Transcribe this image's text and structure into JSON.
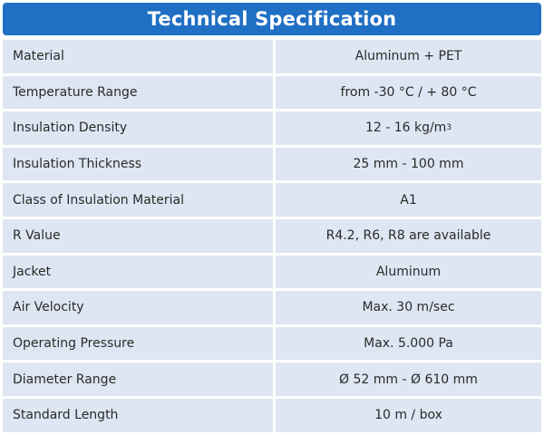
{
  "title": "Technical Specification",
  "rows": [
    {
      "label": "Material",
      "value": "Aluminum + PET"
    },
    {
      "label": "Temperature Range",
      "value": "from -30 °C / + 80 °C"
    },
    {
      "label": "Insulation Density",
      "value": "12  - 16 kg/m",
      "value_sup": "3"
    },
    {
      "label": "Insulation Thickness",
      "value": "25 mm - 100 mm"
    },
    {
      "label": "Class of Insulation Material",
      "value": "A1"
    },
    {
      "label": "R Value",
      "value": "R4.2, R6, R8 are available"
    },
    {
      "label": "Jacket",
      "value": "Aluminum"
    },
    {
      "label": "Air Velocity",
      "value": "Max. 30 m/sec"
    },
    {
      "label": "Operating Pressure",
      "value": "Max. 5.000 Pa"
    },
    {
      "label": "Diameter Range",
      "value": "Ø 52 mm - Ø 610 mm"
    },
    {
      "label": "Standard Length",
      "value": "10 m / box"
    }
  ],
  "colors": {
    "header_bg": "#1f6fc4",
    "header_text": "#ffffff",
    "cell_bg": "#dde6f2",
    "text": "#2a2a2a"
  }
}
